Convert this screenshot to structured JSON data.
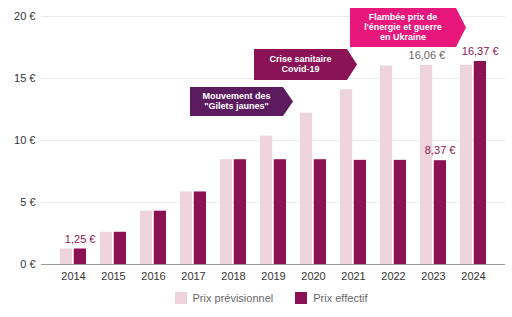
{
  "chart_data": {
    "type": "bar",
    "categories": [
      "2014",
      "2015",
      "2016",
      "2017",
      "2018",
      "2019",
      "2020",
      "2021",
      "2022",
      "2023",
      "2024"
    ],
    "series": [
      {
        "name": "Prix prévisionnel",
        "color": "#ecd3dc",
        "values": [
          1.25,
          2.6,
          4.3,
          5.85,
          8.45,
          10.35,
          12.2,
          14.1,
          16.0,
          16.06,
          16.06
        ],
        "value_labels": [
          null,
          null,
          null,
          null,
          null,
          null,
          null,
          null,
          null,
          "16,06 €",
          null
        ]
      },
      {
        "name": "Prix effectif",
        "color": "#8c1256",
        "values": [
          1.25,
          2.6,
          4.3,
          5.85,
          8.45,
          8.45,
          8.45,
          8.4,
          8.4,
          8.37,
          16.37
        ],
        "value_labels": [
          "1,25 €",
          null,
          null,
          null,
          null,
          null,
          null,
          null,
          null,
          "8,37 €",
          "16,37 €"
        ]
      }
    ],
    "ylim": [
      0,
      20
    ],
    "yticks": [
      {
        "value": 0,
        "label": "0 €"
      },
      {
        "value": 5,
        "label": "5 €"
      },
      {
        "value": 10,
        "label": "10 €"
      },
      {
        "value": 15,
        "label": "15 €"
      },
      {
        "value": 20,
        "label": "20 €"
      }
    ],
    "grid": true,
    "data_labels": true,
    "legend": "bottom",
    "annotations": [
      {
        "text": "Mouvement des\n\"Gilets jaunes\"",
        "color": "#5c1b5e"
      },
      {
        "text": "Crise sanitaire\nCovid-19",
        "color": "#8c1256"
      },
      {
        "text": "Flambée prix de\nl'énergie et guerre\nen Ukraine",
        "color": "#e8177b"
      }
    ]
  }
}
